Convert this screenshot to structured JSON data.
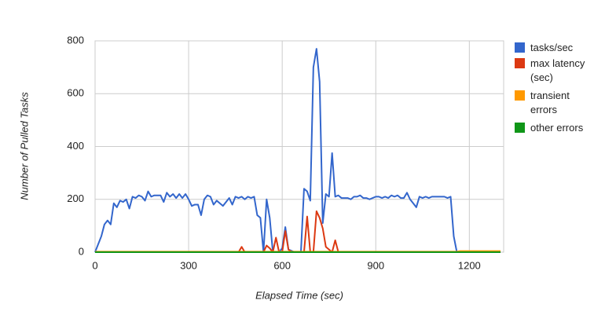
{
  "chart_data": {
    "type": "line",
    "xlabel": "Elapsed Time (sec)",
    "ylabel": "Number of Pulled Tasks",
    "x": [
      0,
      10,
      20,
      30,
      40,
      50,
      60,
      70,
      80,
      90,
      100,
      110,
      120,
      130,
      140,
      150,
      160,
      170,
      180,
      190,
      200,
      210,
      220,
      230,
      240,
      250,
      260,
      270,
      280,
      290,
      300,
      310,
      320,
      330,
      340,
      350,
      360,
      370,
      380,
      390,
      400,
      410,
      420,
      430,
      440,
      450,
      460,
      470,
      480,
      490,
      500,
      510,
      520,
      530,
      540,
      550,
      560,
      570,
      580,
      590,
      600,
      610,
      620,
      630,
      640,
      650,
      660,
      670,
      680,
      690,
      700,
      710,
      720,
      730,
      740,
      750,
      760,
      770,
      780,
      790,
      800,
      810,
      820,
      830,
      840,
      850,
      860,
      870,
      880,
      890,
      900,
      910,
      920,
      930,
      940,
      950,
      960,
      970,
      980,
      990,
      1000,
      1010,
      1020,
      1030,
      1040,
      1050,
      1060,
      1070,
      1080,
      1090,
      1100,
      1110,
      1120,
      1130,
      1140,
      1150,
      1160,
      1170,
      1180,
      1190,
      1200,
      1210,
      1220,
      1230,
      1240,
      1250,
      1260,
      1270,
      1280,
      1290,
      1300
    ],
    "series": [
      {
        "name": "tasks/sec",
        "color": "#3366cc",
        "values": [
          0,
          30,
          60,
          105,
          120,
          105,
          185,
          170,
          195,
          190,
          200,
          165,
          210,
          205,
          215,
          210,
          195,
          230,
          210,
          215,
          215,
          215,
          190,
          225,
          210,
          220,
          205,
          220,
          205,
          220,
          200,
          175,
          180,
          180,
          140,
          200,
          215,
          210,
          180,
          195,
          185,
          175,
          190,
          205,
          180,
          210,
          205,
          210,
          200,
          210,
          205,
          210,
          140,
          130,
          0,
          200,
          130,
          0,
          0,
          0,
          15,
          95,
          10,
          5,
          0,
          0,
          0,
          240,
          230,
          195,
          700,
          770,
          645,
          110,
          220,
          210,
          375,
          210,
          215,
          205,
          205,
          205,
          200,
          210,
          210,
          215,
          205,
          205,
          200,
          205,
          210,
          210,
          205,
          210,
          205,
          215,
          210,
          215,
          205,
          205,
          225,
          200,
          185,
          170,
          210,
          205,
          210,
          205,
          210,
          210,
          210,
          210,
          210,
          205,
          210,
          60,
          0,
          null,
          null,
          null,
          null,
          null,
          null,
          null,
          null,
          null,
          null,
          null,
          null,
          null,
          null
        ]
      },
      {
        "name": "max latency (sec)",
        "color": "#dc3912",
        "values": [
          0,
          0,
          0,
          0,
          0,
          0,
          0,
          0,
          0,
          0,
          0,
          0,
          0,
          0,
          0,
          0,
          0,
          0,
          0,
          0,
          0,
          0,
          0,
          0,
          0,
          0,
          0,
          0,
          0,
          0,
          0,
          0,
          0,
          0,
          0,
          0,
          0,
          0,
          0,
          0,
          0,
          0,
          0,
          0,
          0,
          0,
          0,
          20,
          0,
          0,
          0,
          0,
          0,
          0,
          0,
          25,
          15,
          0,
          55,
          0,
          0,
          80,
          10,
          0,
          0,
          0,
          0,
          0,
          135,
          0,
          0,
          155,
          130,
          90,
          20,
          10,
          0,
          45,
          0,
          0,
          0,
          0,
          0,
          0,
          0,
          0,
          0,
          0,
          0,
          0,
          0,
          0,
          0,
          0,
          0,
          0,
          0,
          0,
          0,
          0,
          0,
          0,
          0,
          0,
          0,
          0,
          0,
          0,
          0,
          0,
          0,
          0,
          0,
          0,
          0,
          0,
          0,
          0,
          0,
          0,
          0,
          0,
          0,
          0,
          0,
          0,
          0,
          0,
          0,
          0,
          0
        ]
      },
      {
        "name": "transient errors",
        "color": "#ff9900",
        "values": [
          2,
          2,
          2,
          2,
          2,
          2,
          2,
          2,
          2,
          2,
          2,
          2,
          2,
          2,
          2,
          2,
          2,
          2,
          2,
          2,
          2,
          2,
          2,
          2,
          2,
          2,
          2,
          2,
          2,
          2,
          2,
          2,
          2,
          2,
          2,
          2,
          2,
          2,
          2,
          2,
          2,
          2,
          2,
          2,
          2,
          2,
          2,
          2,
          2,
          2,
          2,
          2,
          2,
          2,
          2,
          2,
          2,
          2,
          2,
          2,
          2,
          2,
          2,
          2,
          2,
          2,
          2,
          2,
          2,
          2,
          2,
          2,
          2,
          2,
          2,
          2,
          2,
          2,
          2,
          2,
          2,
          2,
          2,
          2,
          2,
          2,
          2,
          2,
          2,
          2,
          2,
          2,
          2,
          2,
          2,
          2,
          2,
          2,
          2,
          2,
          2,
          2,
          2,
          2,
          2,
          2,
          2,
          2,
          2,
          2,
          2,
          2,
          2,
          2,
          2,
          2,
          2,
          4,
          4,
          4,
          4,
          4,
          4,
          4,
          4,
          4,
          4,
          4,
          4,
          4,
          4
        ]
      },
      {
        "name": "other errors",
        "color": "#109618",
        "values": [
          0,
          0,
          0,
          0,
          0,
          0,
          0,
          0,
          0,
          0,
          0,
          0,
          0,
          0,
          0,
          0,
          0,
          0,
          0,
          0,
          0,
          0,
          0,
          0,
          0,
          0,
          0,
          0,
          0,
          0,
          0,
          0,
          0,
          0,
          0,
          0,
          0,
          0,
          0,
          0,
          0,
          0,
          0,
          0,
          0,
          0,
          0,
          0,
          0,
          0,
          0,
          0,
          0,
          0,
          0,
          0,
          0,
          0,
          0,
          0,
          0,
          0,
          0,
          0,
          0,
          0,
          0,
          0,
          0,
          0,
          0,
          0,
          0,
          0,
          0,
          0,
          0,
          0,
          0,
          0,
          0,
          0,
          0,
          0,
          0,
          0,
          0,
          0,
          0,
          0,
          0,
          0,
          0,
          0,
          0,
          0,
          0,
          0,
          0,
          0,
          0,
          0,
          0,
          0,
          0,
          0,
          0,
          0,
          0,
          0,
          0,
          0,
          0,
          0,
          0,
          0,
          0,
          0,
          0,
          0,
          0,
          0,
          0,
          0,
          0,
          0,
          0,
          0,
          0,
          0,
          0
        ]
      }
    ],
    "xlim": [
      0,
      1310
    ],
    "xticks": [
      0,
      300,
      600,
      900,
      1200
    ],
    "ylim": [
      0,
      800
    ],
    "yticks": [
      0,
      200,
      400,
      600,
      800
    ],
    "grid": true,
    "legend": "right"
  }
}
